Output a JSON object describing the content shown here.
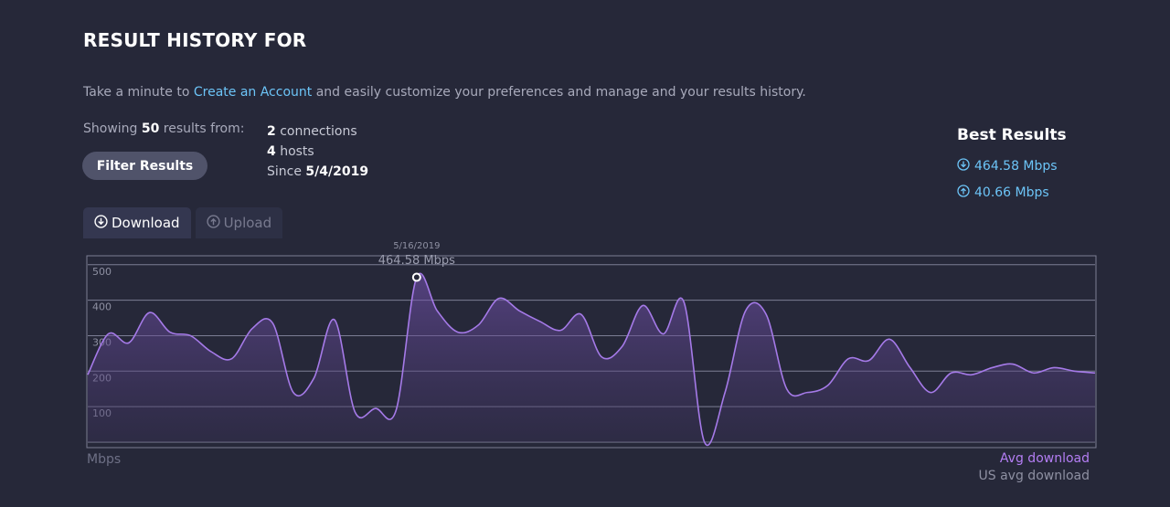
{
  "header": {
    "title": "RESULT HISTORY FOR"
  },
  "intro": {
    "before": "Take a minute to ",
    "link": "Create an Account",
    "after": " and easily customize your preferences and manage and your results history."
  },
  "showing": {
    "prefix": "Showing ",
    "count": "50",
    "suffix": " results from:"
  },
  "filter_button": "Filter Results",
  "meta": {
    "connections_count": "2",
    "connections_label": " connections",
    "hosts_count": "4",
    "hosts_label": " hosts",
    "since_label": "Since ",
    "since_date": "5/4/2019"
  },
  "best": {
    "title": "Best Results",
    "download": "464.58 Mbps",
    "upload": "40.66 Mbps",
    "download_icon": "arrow-down-circle-icon",
    "upload_icon": "arrow-up-circle-icon"
  },
  "tabs": [
    {
      "label": "Download",
      "icon": "arrow-down-circle-icon",
      "active": true
    },
    {
      "label": "Upload",
      "icon": "arrow-up-circle-icon",
      "active": false
    }
  ],
  "colors": {
    "background": "#262839",
    "accent": "#b47ef4",
    "link": "#6cc4f7",
    "line": "#a57ae8"
  },
  "chart_data": {
    "type": "area",
    "unit_label": "Mbps",
    "ylim": [
      0,
      500
    ],
    "yticks": [
      100,
      200,
      300,
      400,
      500
    ],
    "grid": true,
    "series": [
      {
        "name": "Avg download",
        "values": [
          190,
          305,
          280,
          365,
          310,
          300,
          255,
          235,
          320,
          335,
          140,
          180,
          345,
          85,
          95,
          90,
          464.58,
          370,
          310,
          330,
          405,
          370,
          340,
          315,
          360,
          240,
          270,
          385,
          305,
          395,
          0,
          140,
          370,
          360,
          150,
          140,
          160,
          235,
          230,
          290,
          210,
          140,
          195,
          190,
          210,
          220,
          195,
          210,
          200,
          195
        ]
      }
    ],
    "highlight": {
      "index": 16,
      "label_date": "5/16/2019",
      "label_value": "464.58 Mbps"
    },
    "legend": [
      "Avg download",
      "US avg download"
    ]
  }
}
